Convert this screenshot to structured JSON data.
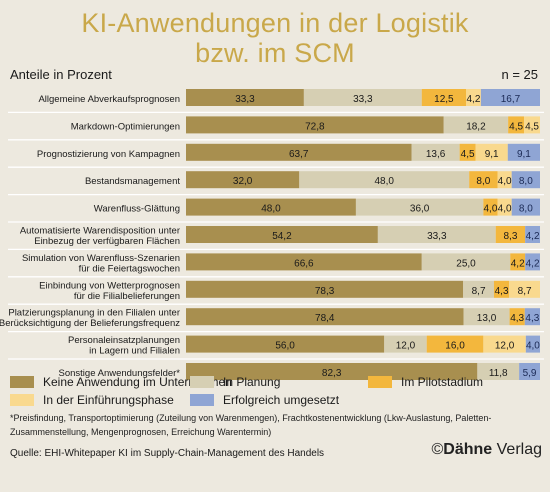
{
  "title_line1": "KI-Anwendungen in der Logistik",
  "title_line2": "bzw. im SCM",
  "subtitle": "Anteile in Prozent",
  "n_label": "n = 25",
  "colors": {
    "keine": "#a88f4f",
    "planung": "#d6cfb3",
    "pilot": "#f3b73d",
    "einfuehrung": "#f9d98e",
    "erfolgreich": "#8fa5d4",
    "title": "#c9a84a"
  },
  "chart_data": {
    "type": "bar",
    "orientation": "horizontal",
    "stacked": true,
    "xlim": [
      0,
      100
    ],
    "categories": [
      [
        "Allgemeine Abverkaufsprognosen"
      ],
      [
        "Markdown-Optimierungen"
      ],
      [
        "Prognostizierung von Kampagnen"
      ],
      [
        "Bestandsmanagement"
      ],
      [
        "Warenfluss-Glättung"
      ],
      [
        "Automatisierte Warendisposition unter",
        "Einbezug der verfügbaren Flächen"
      ],
      [
        "Simulation von Warenfluss-Szenarien",
        "für die Feiertagswochen"
      ],
      [
        "Einbindung von Wetterprognosen",
        "für die Filialbelieferungen"
      ],
      [
        "Platzierungsplanung in den Filialen unter",
        "Berücksichtigung der Belieferungsfrequenz"
      ],
      [
        "Personaleinsatzplanungen",
        "in Lagern und Filialen"
      ],
      [
        "Sonstige Anwendungsfelder*"
      ]
    ],
    "series": [
      {
        "name": "Keine Anwendung im Unternehmen",
        "color": "#a88f4f",
        "values": [
          33.3,
          72.8,
          63.7,
          32.0,
          48.0,
          54.2,
          66.6,
          78.3,
          78.4,
          56.0,
          82.3
        ],
        "labels": [
          "33,3",
          "72,8",
          "63,7",
          "32,0",
          "48,0",
          "54,2",
          "66,6",
          "78,3",
          "78,4",
          "56,0",
          "82,3"
        ]
      },
      {
        "name": "In Planung",
        "color": "#d6cfb3",
        "values": [
          33.3,
          18.2,
          13.6,
          48.0,
          36.0,
          33.3,
          25.0,
          8.7,
          13.0,
          12.0,
          11.8
        ],
        "labels": [
          "33,3",
          "18,2",
          "13,6",
          "48,0",
          "36,0",
          "33,3",
          "25,0",
          "8,7",
          "13,0",
          "12,0",
          "11,8"
        ]
      },
      {
        "name": "Im Pilotstadium",
        "color": "#f3b73d",
        "values": [
          12.5,
          4.5,
          4.5,
          8.0,
          4.0,
          8.3,
          4.2,
          4.3,
          4.3,
          16.0,
          0
        ],
        "labels": [
          "12,5",
          "4,5",
          "4,5",
          "8,0",
          "4,0",
          "8,3",
          "4,2",
          "4,3",
          "4,3",
          "16,0",
          ""
        ]
      },
      {
        "name": "In der Einführungsphase",
        "color": "#f9d98e",
        "values": [
          4.2,
          4.5,
          9.1,
          4.0,
          4.0,
          0,
          0,
          8.7,
          0,
          12.0,
          0
        ],
        "labels": [
          "4,2",
          "4,5",
          "9,1",
          "4,0",
          "4,0",
          "",
          "",
          "8,7",
          "",
          "12,0",
          ""
        ]
      },
      {
        "name": "Erfolgreich umgesetzt",
        "color": "#8fa5d4",
        "values": [
          16.7,
          0,
          9.1,
          8.0,
          8.0,
          4.2,
          4.2,
          0,
          4.3,
          4.0,
          5.9
        ],
        "labels": [
          "16,7",
          "",
          "9,1",
          "8,0",
          "8,0",
          "4,2",
          "4,2",
          "",
          "4,3",
          "4,0",
          "5,9"
        ]
      }
    ]
  },
  "footnote": "*Preisfindung, Transportoptimierung (Zuteilung von Warenmengen), Frachtkostenentwicklung (Lkw-Auslastung, Paletten-Zusammenstellung, Mengenprognosen, Erreichung Warentermin)",
  "source": "Quelle: EHI-Whitepaper KI im Supply-Chain-Management des Handels",
  "brand": {
    "copyright": "©",
    "name_bold": "Dähne",
    "name_rest": " Verlag"
  }
}
